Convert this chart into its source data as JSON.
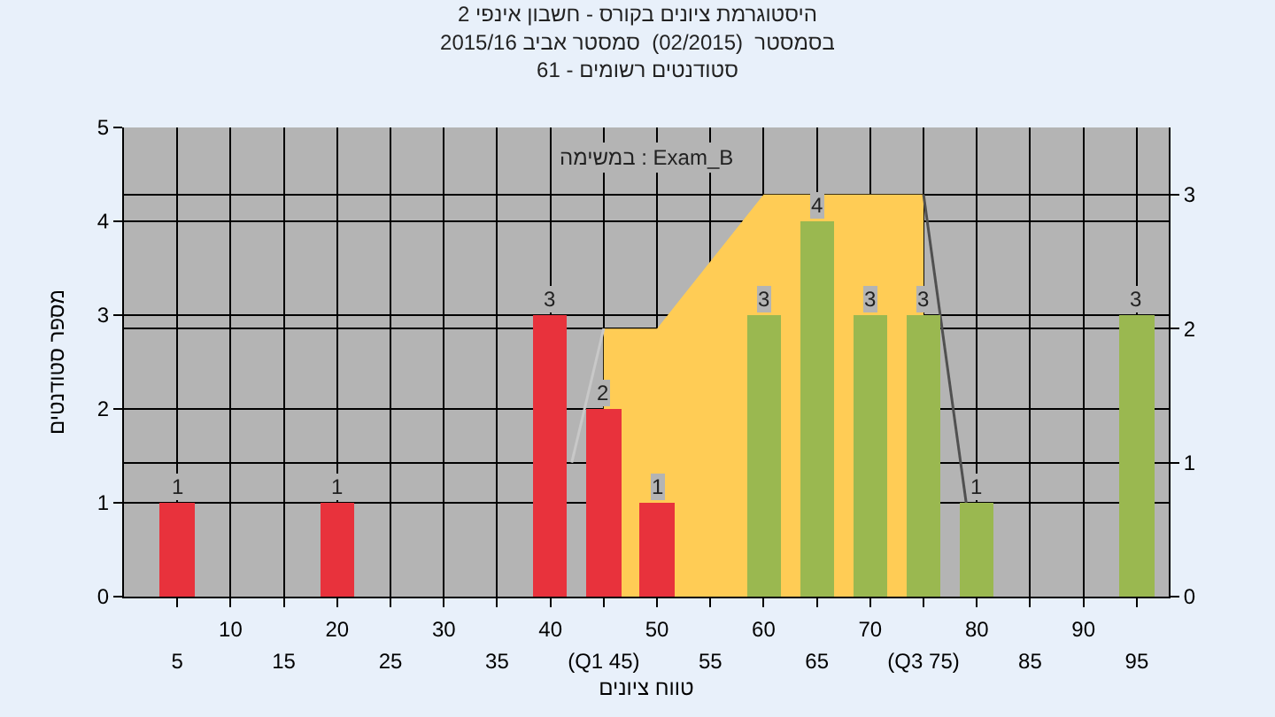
{
  "chart_data": {
    "type": "bar",
    "title": "היסטוגרמת ציונים בקורס - חשבון אינפי 2\nבסמסטר  (02/2015)  סמסטר אביב 2015/16\nסטודנטים רשומים - 61",
    "xlabel": "טווח ציונים",
    "ylabel": "מספר סטודנטים",
    "annotations": [
      "במשימה : Exam_B"
    ],
    "xlim": [
      0,
      98
    ],
    "xticks": [
      5,
      15,
      25,
      35,
      {
        "value": 45,
        "label": "(Q1 45)"
      },
      55,
      65,
      {
        "value": 75,
        "label": "(Q3 75)"
      },
      85,
      95
    ],
    "x2lim": [
      0,
      98
    ],
    "x2ticks": [
      10,
      20,
      30,
      40,
      50,
      60,
      70,
      80,
      90
    ],
    "ylim": [
      0,
      5
    ],
    "yticks": [
      0,
      1,
      2,
      3,
      4,
      5
    ],
    "y2lim": [
      0,
      3.5
    ],
    "y2ticks": [
      0,
      1,
      2,
      3
    ],
    "grid": true,
    "series": [
      {
        "type": "area",
        "axis": "y2",
        "color": "#ffcc55",
        "x": [
          45,
          50,
          60,
          75
        ],
        "values": [
          2,
          2,
          3,
          3
        ]
      },
      {
        "type": "line",
        "axis": "y2",
        "color": "#c8c8c8",
        "x": [
          42,
          45
        ],
        "values": [
          1,
          2
        ]
      },
      {
        "type": "line",
        "axis": "y2",
        "color": "#505050",
        "x": [
          75,
          79
        ],
        "values": [
          3,
          0.7
        ]
      },
      {
        "x": [
          5,
          20,
          40,
          45,
          50,
          60,
          65,
          70,
          75,
          80,
          95
        ],
        "values": [
          1,
          1,
          3,
          2,
          1,
          3,
          4,
          3,
          3,
          1,
          3
        ],
        "value_labels": [
          "1",
          "1",
          "3",
          "2",
          "1",
          "3",
          "4",
          "3",
          "3",
          "1",
          "3"
        ],
        "colors": [
          "#e8323c",
          "#e8323c",
          "#e8323c",
          "#e8323c",
          "#e8323c",
          "#9ab850",
          "#9ab850",
          "#9ab850",
          "#9ab850",
          "#9ab850",
          "#9ab850"
        ]
      }
    ]
  }
}
